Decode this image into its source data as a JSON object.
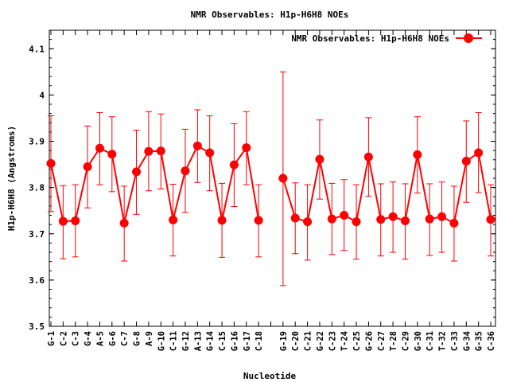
{
  "chart_data": {
    "type": "line",
    "title": "NMR Observables: H1p-H6H8 NOEs",
    "xlabel": "Nucleotide",
    "ylabel": "H1p-H6H8 (Angstroms)",
    "ylim": [
      3.5,
      4.14
    ],
    "yticks": [
      "3.5",
      "3.6",
      "3.7",
      "3.8",
      "3.9",
      "4",
      "4.1"
    ],
    "grid": false,
    "legend": {
      "position": "top-right",
      "label": "NMR Observables: H1p-H6H8 NOEs"
    },
    "colors": {
      "series": "#ff0000",
      "axis": "#000000"
    },
    "categories": [
      "G-1",
      "C-2",
      "C-3",
      "G-4",
      "A-5",
      "G-6",
      "C-7",
      "G-8",
      "A-9",
      "G-10",
      "C-11",
      "G-12",
      "A-13",
      "G-14",
      "C-15",
      "G-16",
      "G-17",
      "C-18",
      "",
      "G-19",
      "C-20",
      "C-21",
      "G-22",
      "C-23",
      "T-24",
      "C-25",
      "G-26",
      "C-27",
      "T-28",
      "C-29",
      "G-30",
      "C-31",
      "T-32",
      "C-33",
      "G-34",
      "G-35",
      "C-36"
    ],
    "series": [
      {
        "name": "NMR Observables: H1p-H6H8 NOEs",
        "values": [
          3.852,
          3.727,
          3.728,
          3.845,
          3.885,
          3.872,
          3.723,
          3.834,
          3.878,
          3.879,
          3.73,
          3.836,
          3.89,
          3.875,
          3.729,
          3.849,
          3.886,
          3.729,
          null,
          3.82,
          3.734,
          3.726,
          3.861,
          3.732,
          3.74,
          3.726,
          3.866,
          3.731,
          3.737,
          3.728,
          3.871,
          3.732,
          3.737,
          3.723,
          3.857,
          3.875,
          3.731
        ],
        "err_low": [
          3.748,
          3.646,
          3.65,
          3.756,
          3.806,
          3.791,
          3.641,
          3.742,
          3.793,
          3.797,
          3.652,
          3.746,
          3.811,
          3.793,
          3.649,
          3.759,
          3.806,
          3.65,
          null,
          3.588,
          3.657,
          3.643,
          3.775,
          3.655,
          3.664,
          3.645,
          3.781,
          3.652,
          3.66,
          3.645,
          3.788,
          3.653,
          3.66,
          3.641,
          3.768,
          3.789,
          3.652
        ],
        "err_high": [
          3.955,
          3.804,
          3.806,
          3.933,
          3.962,
          3.953,
          3.803,
          3.924,
          3.964,
          3.959,
          3.807,
          3.926,
          3.968,
          3.955,
          3.809,
          3.938,
          3.964,
          3.806,
          null,
          4.05,
          3.81,
          3.806,
          3.946,
          3.809,
          3.817,
          3.806,
          3.951,
          3.808,
          3.812,
          3.808,
          3.953,
          3.808,
          3.812,
          3.803,
          3.944,
          3.962,
          3.806
        ]
      }
    ]
  }
}
